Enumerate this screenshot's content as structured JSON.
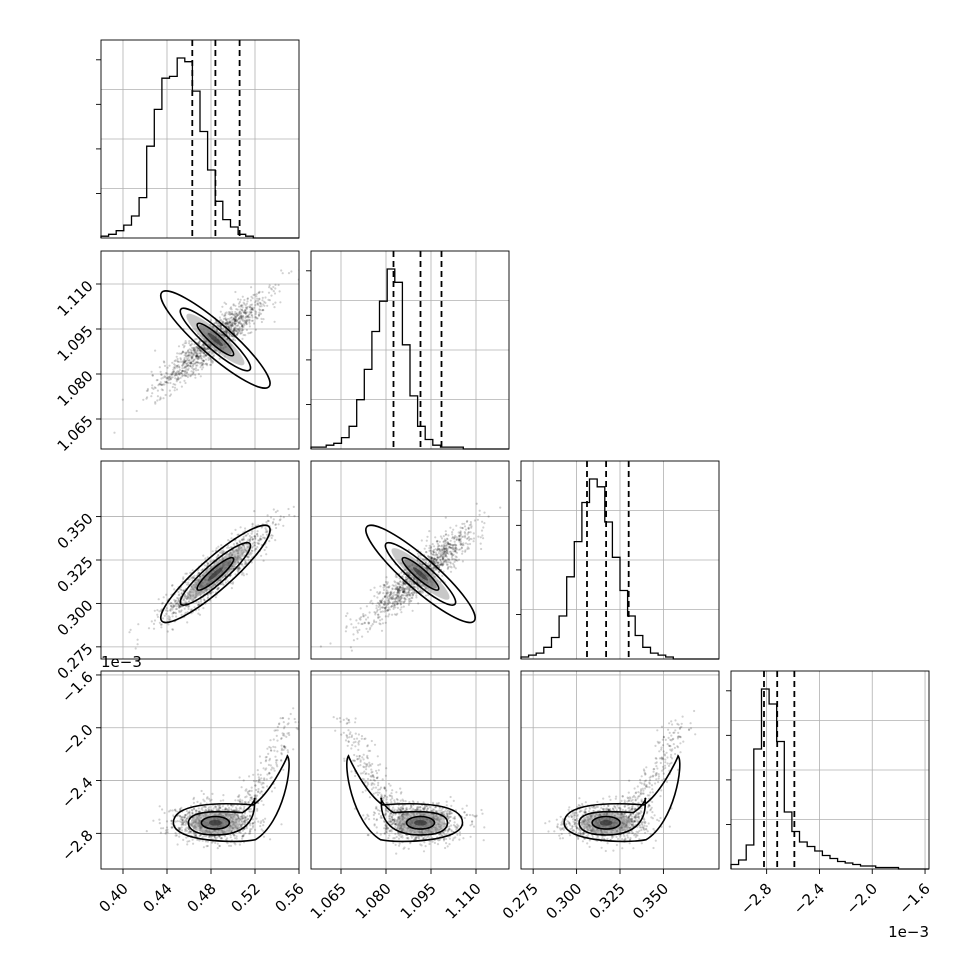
{
  "chart_data": {
    "type": "corner",
    "parameters": [
      {
        "index": 0,
        "range": [
          0.38,
          0.56
        ],
        "ticks": [
          "0.40",
          "0.44",
          "0.48",
          "0.52",
          "0.56"
        ],
        "quantiles": [
          0.463,
          0.484,
          0.506
        ],
        "multiplier": ""
      },
      {
        "index": 1,
        "range": [
          1.055,
          1.121
        ],
        "ticks": [
          "1.065",
          "1.080",
          "1.095",
          "1.110"
        ],
        "quantiles": [
          1.0825,
          1.0915,
          1.0985
        ],
        "multiplier": ""
      },
      {
        "index": 2,
        "range": [
          0.268,
          0.382
        ],
        "ticks": [
          "0.275",
          "0.300",
          "0.325",
          "0.350"
        ],
        "quantiles": [
          0.306,
          0.317,
          0.33
        ],
        "multiplier": ""
      },
      {
        "index": 3,
        "range": [
          -3.07,
          -1.57
        ],
        "ticks": [
          "−2.8",
          "−2.4",
          "−2.0",
          "−1.6"
        ],
        "quantiles": [
          -2.82,
          -2.72,
          -2.59
        ],
        "multiplier": "1e−3"
      }
    ],
    "histograms": [
      {
        "param": 0,
        "values": [
          1,
          2,
          4,
          7,
          12,
          22,
          50,
          70,
          87,
          88,
          98,
          96,
          80,
          58,
          37,
          20,
          10,
          6,
          2,
          1,
          0,
          0,
          0,
          0,
          0,
          0
        ]
      },
      {
        "param": 1,
        "values": [
          1,
          1,
          2,
          3,
          6,
          12,
          26,
          42,
          62,
          78,
          95,
          88,
          55,
          28,
          12,
          5,
          2,
          1,
          1,
          1,
          0,
          0,
          0,
          0,
          0,
          0
        ]
      },
      {
        "param": 2,
        "values": [
          1,
          2,
          3,
          6,
          11,
          22,
          42,
          60,
          80,
          92,
          88,
          70,
          52,
          35,
          22,
          12,
          6,
          3,
          2,
          1,
          0,
          0,
          0,
          0,
          0,
          0
        ]
      },
      {
        "param": 3,
        "values": [
          3,
          6,
          16,
          80,
          120,
          110,
          85,
          38,
          25,
          18,
          15,
          12,
          9,
          7,
          5,
          4,
          3,
          2,
          2,
          1,
          1,
          1,
          0,
          0,
          0,
          0
        ]
      }
    ],
    "pairs": [
      {
        "x": 0,
        "y": 1,
        "shape": "linear",
        "slope": -0.295
      },
      {
        "x": 0,
        "y": 2,
        "shape": "linear",
        "slope": 0.45
      },
      {
        "x": 1,
        "y": 2,
        "shape": "linear",
        "slope": -1.55
      },
      {
        "x": 0,
        "y": 3,
        "shape": "hook",
        "hook_side": "right"
      },
      {
        "x": 1,
        "y": 3,
        "shape": "hook",
        "hook_side": "left"
      },
      {
        "x": 2,
        "y": 3,
        "shape": "hook",
        "hook_side": "right"
      }
    ],
    "contour_levels": [
      0.39,
      0.86,
      1.0
    ],
    "grid": true,
    "colors": {
      "axes": "#000000",
      "grid": "#b0b0b0",
      "points": "#000000",
      "contour": "#000000",
      "quantile": "#000000"
    }
  }
}
